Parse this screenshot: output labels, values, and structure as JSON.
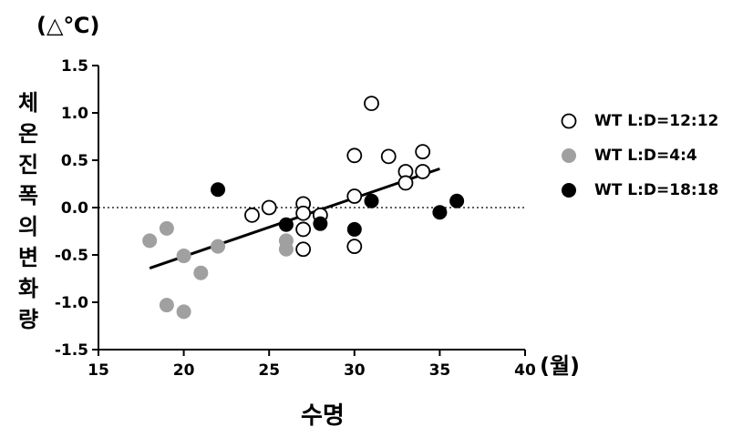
{
  "chart_data": {
    "type": "scatter",
    "unit_label": "(△℃)",
    "ylabel": "체온 진폭의 변화량",
    "xlabel": "수명",
    "x_unit": "(월)",
    "xlim": [
      15,
      40
    ],
    "ylim": [
      -1.5,
      1.5
    ],
    "x_ticks": [
      "15",
      "20",
      "25",
      "30",
      "35",
      "40"
    ],
    "y_ticks": [
      "1.5",
      "1.0",
      "0.5",
      "0.0",
      "-0.5",
      "-1.0",
      "-1.5"
    ],
    "reference_line_y": 0,
    "legend_position": "right",
    "series": [
      {
        "name": "WT L:D=12:12",
        "marker": "open-circle",
        "color": "#000000",
        "points": [
          [
            24,
            -0.08
          ],
          [
            25,
            0.0
          ],
          [
            27,
            0.04
          ],
          [
            27,
            -0.06
          ],
          [
            27,
            -0.23
          ],
          [
            27,
            -0.44
          ],
          [
            28,
            -0.08
          ],
          [
            30,
            0.55
          ],
          [
            30,
            0.12
          ],
          [
            30,
            -0.41
          ],
          [
            31,
            1.1
          ],
          [
            32,
            0.54
          ],
          [
            33,
            0.38
          ],
          [
            33,
            0.26
          ],
          [
            34,
            0.59
          ],
          [
            34,
            0.38
          ]
        ]
      },
      {
        "name": "WT L:D=4:4",
        "marker": "filled-circle",
        "color": "#a0a0a0",
        "points": [
          [
            18,
            -0.35
          ],
          [
            19,
            -0.22
          ],
          [
            19,
            -1.03
          ],
          [
            20,
            -0.51
          ],
          [
            20,
            -1.1
          ],
          [
            21,
            -0.69
          ],
          [
            22,
            -0.41
          ],
          [
            26,
            -0.35
          ],
          [
            26,
            -0.44
          ]
        ]
      },
      {
        "name": "WT L:D=18:18",
        "marker": "filled-circle",
        "color": "#000000",
        "points": [
          [
            22,
            0.19
          ],
          [
            26,
            -0.18
          ],
          [
            28,
            -0.17
          ],
          [
            30,
            -0.23
          ],
          [
            31,
            0.07
          ],
          [
            35,
            -0.05
          ],
          [
            36,
            0.07
          ]
        ]
      }
    ],
    "trend_line": {
      "x": [
        18,
        35
      ],
      "y": [
        -0.64,
        0.41
      ]
    }
  }
}
